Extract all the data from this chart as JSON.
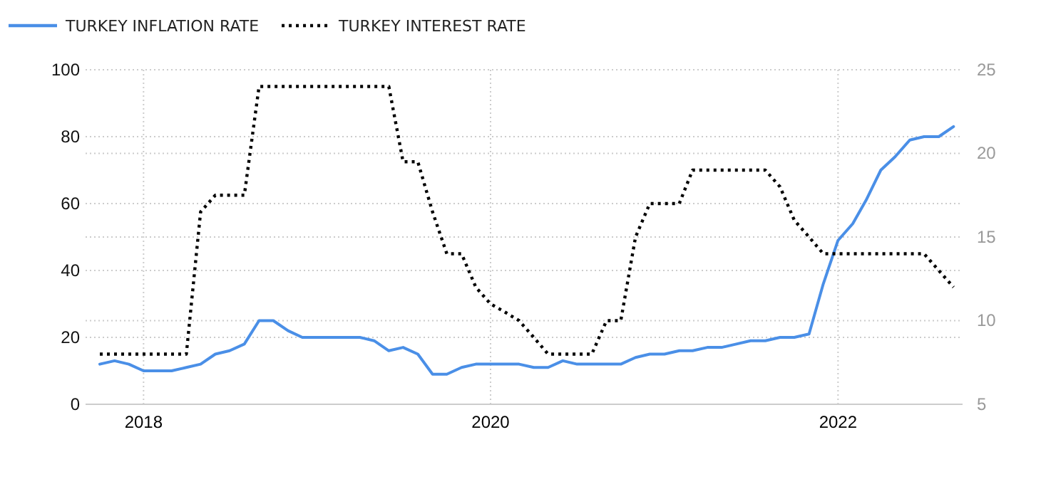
{
  "chart_data": {
    "type": "line",
    "x": [
      "2017-10",
      "2017-11",
      "2017-12",
      "2018-01",
      "2018-02",
      "2018-03",
      "2018-04",
      "2018-05",
      "2018-06",
      "2018-07",
      "2018-08",
      "2018-09",
      "2018-10",
      "2018-11",
      "2018-12",
      "2019-01",
      "2019-02",
      "2019-03",
      "2019-04",
      "2019-05",
      "2019-06",
      "2019-07",
      "2019-08",
      "2019-09",
      "2019-10",
      "2019-11",
      "2019-12",
      "2020-01",
      "2020-02",
      "2020-03",
      "2020-04",
      "2020-05",
      "2020-06",
      "2020-07",
      "2020-08",
      "2020-09",
      "2020-10",
      "2020-11",
      "2020-12",
      "2021-01",
      "2021-02",
      "2021-03",
      "2021-04",
      "2021-05",
      "2021-06",
      "2021-07",
      "2021-08",
      "2021-09",
      "2021-10",
      "2021-11",
      "2021-12",
      "2022-01",
      "2022-02",
      "2022-03",
      "2022-04",
      "2022-05",
      "2022-06",
      "2022-07",
      "2022-08",
      "2022-09"
    ],
    "series": [
      {
        "name": "TURKEY INFLATION RATE",
        "color": "#4a8fe7",
        "line_style": "solid",
        "values": [
          12,
          13,
          12,
          10,
          10,
          10,
          11,
          12,
          15,
          16,
          18,
          25,
          25,
          22,
          20,
          20,
          20,
          20,
          20,
          19,
          16,
          17,
          15,
          9,
          9,
          11,
          12,
          12,
          12,
          12,
          11,
          11,
          13,
          12,
          12,
          12,
          12,
          14,
          15,
          15,
          16,
          16,
          17,
          17,
          18,
          19,
          19,
          20,
          20,
          21,
          36,
          49,
          54,
          61,
          70,
          74,
          79,
          80,
          80,
          83
        ]
      },
      {
        "name": "TURKEY INTEREST RATE",
        "color": "#000000",
        "line_style": "dotted",
        "axis": "y2",
        "values": [
          8,
          8,
          8,
          8,
          8,
          8,
          8,
          16.5,
          17.5,
          17.5,
          17.5,
          24,
          24,
          24,
          24,
          24,
          24,
          24,
          24,
          24,
          24,
          19.5,
          19.5,
          16.5,
          14,
          14,
          12,
          11,
          10.5,
          10,
          9,
          8,
          8,
          8,
          8,
          10,
          10,
          15,
          17,
          17,
          17,
          19,
          19,
          19,
          19,
          19,
          19,
          18,
          16,
          15,
          14,
          14,
          14,
          14,
          14,
          14,
          14,
          14,
          13,
          12
        ]
      }
    ],
    "xlim": [
      "2017-09-01",
      "2022-09-20"
    ],
    "xticks": [
      {
        "value": "2018",
        "label": "2018"
      },
      {
        "value": "2020",
        "label": "2020"
      },
      {
        "value": "2022",
        "label": "2022"
      }
    ],
    "ylim": [
      0,
      100
    ],
    "yticks": [
      0,
      20,
      40,
      60,
      80,
      100
    ],
    "y2lim": [
      5,
      25
    ],
    "y2ticks": [
      5,
      10,
      15,
      20,
      25
    ],
    "grid": true,
    "legend": "top left"
  }
}
